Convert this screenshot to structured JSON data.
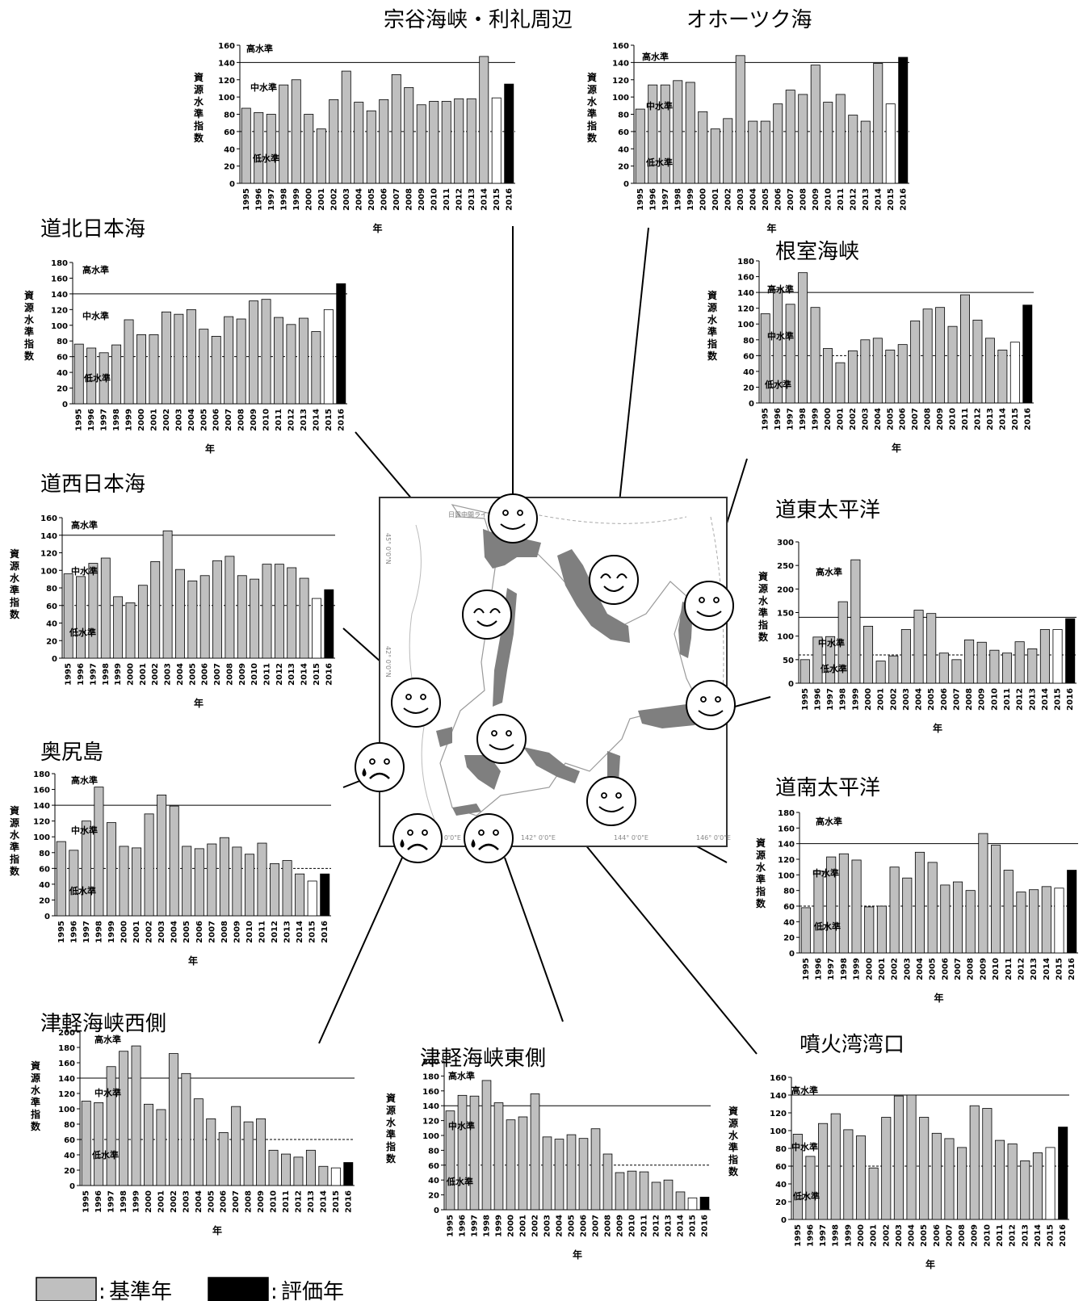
{
  "years": [
    "1995",
    "1996",
    "1997",
    "1998",
    "1999",
    "2000",
    "2001",
    "2002",
    "2003",
    "2004",
    "2005",
    "2006",
    "2007",
    "2008",
    "2009",
    "2010",
    "2011",
    "2012",
    "2013",
    "2014",
    "2015",
    "2016"
  ],
  "ylabel": "資源水準指数",
  "xlabel": "年",
  "level_labels": {
    "high": "高水準",
    "mid": "中水準",
    "low": "低水準"
  },
  "legend": {
    "base": "基準年",
    "eval": "評価年",
    "sep": ":"
  },
  "colors": {
    "base": "#bfbfbf",
    "prev": "#ffffff",
    "eval": "#000000",
    "edge": "#000000"
  },
  "map": {
    "overlay_label": "日露中間ライン",
    "lon_ticks": [
      "140° 0'0\"E",
      "142° 0'0\"E",
      "144° 0'0\"E",
      "146° 0'0\"E"
    ],
    "lat_ticks": [
      "45° 0'0\"N",
      "42° 0'0\"N"
    ]
  },
  "chart_data": [
    {
      "type": "bar",
      "title": "宗谷海峡・利礼周辺",
      "ylim": [
        0,
        160
      ],
      "ystep": 20,
      "high": 140,
      "low": 60,
      "values": [
        87,
        82,
        80,
        114,
        120,
        80,
        63,
        97,
        130,
        94,
        84,
        97,
        126,
        111,
        91,
        95,
        95,
        98,
        98,
        147,
        99,
        115
      ]
    },
    {
      "type": "bar",
      "title": "オホーツク海",
      "ylim": [
        0,
        160
      ],
      "ystep": 20,
      "high": 140,
      "low": 60,
      "values": [
        86,
        114,
        114,
        119,
        117,
        83,
        63,
        75,
        148,
        72,
        72,
        92,
        108,
        103,
        137,
        94,
        103,
        79,
        72,
        139,
        92,
        146
      ]
    },
    {
      "type": "bar",
      "title": "道北日本海",
      "ylim": [
        0,
        180
      ],
      "ystep": 20,
      "high": 140,
      "low": 60,
      "values": [
        76,
        71,
        65,
        75,
        107,
        88,
        88,
        117,
        114,
        120,
        95,
        86,
        111,
        108,
        131,
        133,
        110,
        101,
        109,
        92,
        120,
        153
      ]
    },
    {
      "type": "bar",
      "title": "根室海峡",
      "ylim": [
        0,
        180
      ],
      "ystep": 20,
      "high": 140,
      "low": 60,
      "values": [
        113,
        144,
        125,
        165,
        121,
        69,
        51,
        66,
        80,
        82,
        67,
        74,
        104,
        119,
        121,
        97,
        137,
        105,
        82,
        67,
        77,
        124
      ]
    },
    {
      "type": "bar",
      "title": "道西日本海",
      "ylim": [
        0,
        160
      ],
      "ystep": 20,
      "high": 140,
      "low": 60,
      "values": [
        96,
        93,
        108,
        114,
        70,
        63,
        83,
        110,
        145,
        101,
        88,
        94,
        111,
        116,
        94,
        90,
        107,
        107,
        103,
        91,
        68,
        78
      ]
    },
    {
      "type": "bar",
      "title": "道東太平洋",
      "ylim": [
        0,
        300
      ],
      "ystep": 50,
      "high": 140,
      "low": 60,
      "values": [
        50,
        98,
        99,
        173,
        262,
        121,
        47,
        58,
        114,
        155,
        148,
        64,
        50,
        92,
        87,
        70,
        64,
        88,
        73,
        114,
        114,
        137
      ]
    },
    {
      "type": "bar",
      "title": "奥尻島",
      "ylim": [
        0,
        180
      ],
      "ystep": 20,
      "high": 140,
      "low": 60,
      "values": [
        94,
        83,
        120,
        163,
        118,
        88,
        86,
        129,
        153,
        139,
        88,
        85,
        91,
        99,
        87,
        78,
        92,
        66,
        70,
        53,
        44,
        53
      ]
    },
    {
      "type": "bar",
      "title": "道南太平洋",
      "ylim": [
        0,
        180
      ],
      "ystep": 20,
      "high": 140,
      "low": 60,
      "values": [
        58,
        105,
        123,
        127,
        119,
        59,
        60,
        110,
        96,
        129,
        116,
        87,
        91,
        80,
        153,
        138,
        106,
        78,
        81,
        85,
        83,
        106
      ]
    },
    {
      "type": "bar",
      "title": "津軽海峡西側",
      "ylim": [
        0,
        200
      ],
      "ystep": 20,
      "high": 140,
      "low": 60,
      "values": [
        110,
        108,
        155,
        175,
        182,
        106,
        99,
        172,
        146,
        113,
        87,
        69,
        103,
        83,
        87,
        46,
        41,
        37,
        46,
        25,
        23,
        30
      ]
    },
    {
      "type": "bar",
      "title": "津軽海峡東側",
      "ylim": [
        0,
        200
      ],
      "ystep": 20,
      "high": 140,
      "low": 60,
      "values": [
        133,
        154,
        153,
        174,
        144,
        121,
        125,
        156,
        98,
        95,
        101,
        96,
        109,
        75,
        50,
        52,
        51,
        37,
        40,
        24,
        16,
        17
      ]
    },
    {
      "type": "bar",
      "title": "噴火湾湾口",
      "ylim": [
        0,
        160
      ],
      "ystep": 20,
      "high": 140,
      "low": 60,
      "values": [
        96,
        71,
        108,
        119,
        101,
        94,
        58,
        115,
        139,
        140,
        115,
        97,
        91,
        81,
        128,
        125,
        89,
        85,
        66,
        75,
        81,
        104
      ]
    }
  ]
}
